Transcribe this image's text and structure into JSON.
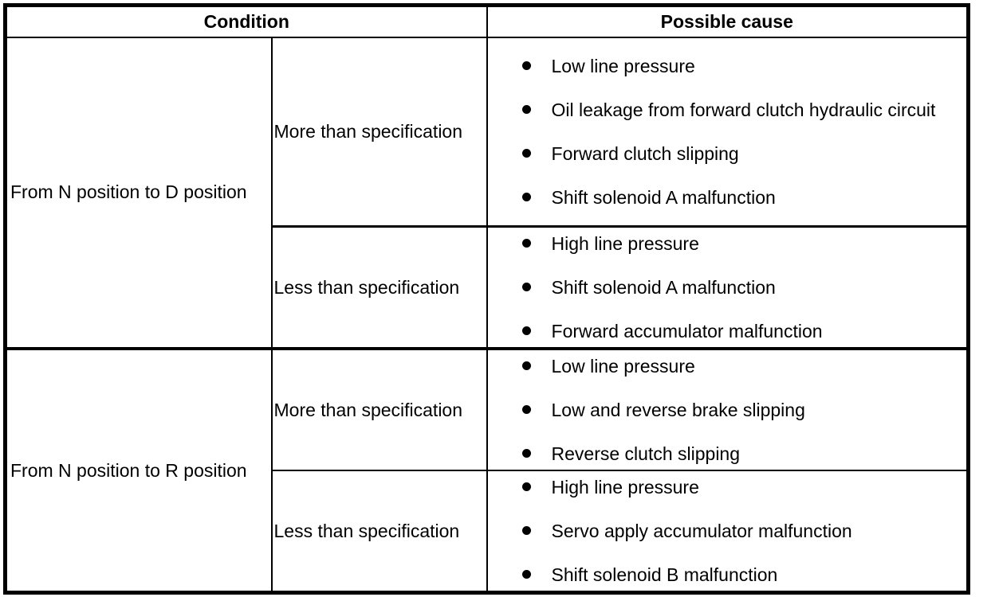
{
  "colors": {
    "border": "#000000",
    "background": "#ffffff",
    "text": "#000000"
  },
  "table": {
    "headers": {
      "condition": "Condition",
      "possible_cause": "Possible cause"
    },
    "groups": [
      {
        "condition": "From N position to D position",
        "rows": [
          {
            "specification": "More than specification",
            "causes": [
              "Low line pressure",
              "Oil leakage from forward clutch hydraulic circuit",
              "Forward clutch slipping",
              "Shift solenoid A malfunction"
            ]
          },
          {
            "specification": "Less than specification",
            "causes": [
              "High line pressure",
              "Shift solenoid A malfunction",
              "Forward accumulator malfunction"
            ]
          }
        ]
      },
      {
        "condition": "From N position to R position",
        "rows": [
          {
            "specification": "More than specification",
            "causes": [
              "Low line pressure",
              "Low and reverse brake slipping",
              "Reverse clutch slipping"
            ]
          },
          {
            "specification": "Less than specification",
            "causes": [
              "High line pressure",
              "Servo apply accumulator malfunction",
              "Shift solenoid B malfunction"
            ]
          }
        ]
      }
    ]
  }
}
